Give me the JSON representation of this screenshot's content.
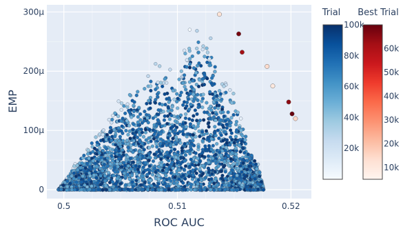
{
  "chart_data": {
    "type": "scatter",
    "xlabel": "ROC AUC",
    "ylabel": "EMP",
    "xlim": [
      0.4985,
      0.5218
    ],
    "ylim": [
      -1.5e-05,
      0.000312
    ],
    "x_ticks": [
      0.5,
      0.51,
      0.52
    ],
    "x_tick_labels": [
      "0.5",
      "0.51",
      "0.52"
    ],
    "y_ticks": [
      0,
      0.0001,
      0.0002,
      0.0003
    ],
    "y_tick_labels": [
      "0",
      "100μ",
      "200μ",
      "300μ"
    ],
    "grid": true,
    "background": "#e5ecf6",
    "series": [
      {
        "name": "Trial",
        "colorscale": "Blues",
        "color_range": [
          0,
          100000
        ],
        "colorbar_ticks": [
          20000,
          40000,
          60000,
          80000,
          100000
        ],
        "colorbar_tick_labels": [
          "20k",
          "40k",
          "60k",
          "80k",
          "100k"
        ],
        "colorbar_title": "Trial",
        "region_envelope": {
          "x": [
            0.4995,
            0.5005,
            0.503,
            0.506,
            0.508,
            0.5092,
            0.5098,
            0.5105,
            0.5112,
            0.512,
            0.5128,
            0.5134,
            0.514,
            0.5147,
            0.5155,
            0.5163,
            0.5172,
            0.5176
          ],
          "y_max": [
            0,
            3e-05,
            0.0001,
            0.000185,
            0.00022,
            0.00022,
            0.00018,
            0.00024,
            0.00028,
            0.00029,
            0.00027,
            0.00025,
            0.00019,
            0.00018,
            0.00013,
            9e-05,
            4e-05,
            0
          ]
        }
      },
      {
        "name": "Best Trial",
        "colorscale": "Reds",
        "color_range": [
          5000,
          70000
        ],
        "colorbar_ticks": [
          10000,
          20000,
          30000,
          40000,
          50000,
          60000
        ],
        "colorbar_tick_labels": [
          "10k",
          "20k",
          "30k",
          "40k",
          "50k",
          "60k"
        ],
        "colorbar_title": "Best Trial",
        "x": [
          0.5137,
          0.5154,
          0.5157,
          0.5179,
          0.5184,
          0.5198,
          0.5201,
          0.5204
        ],
        "y": [
          0.000296,
          0.000263,
          0.000232,
          0.000208,
          0.000175,
          0.000148,
          0.000128,
          0.00012
        ],
        "trial": [
          12000,
          68000,
          62000,
          14000,
          10000,
          65000,
          70000,
          15000
        ]
      }
    ]
  }
}
